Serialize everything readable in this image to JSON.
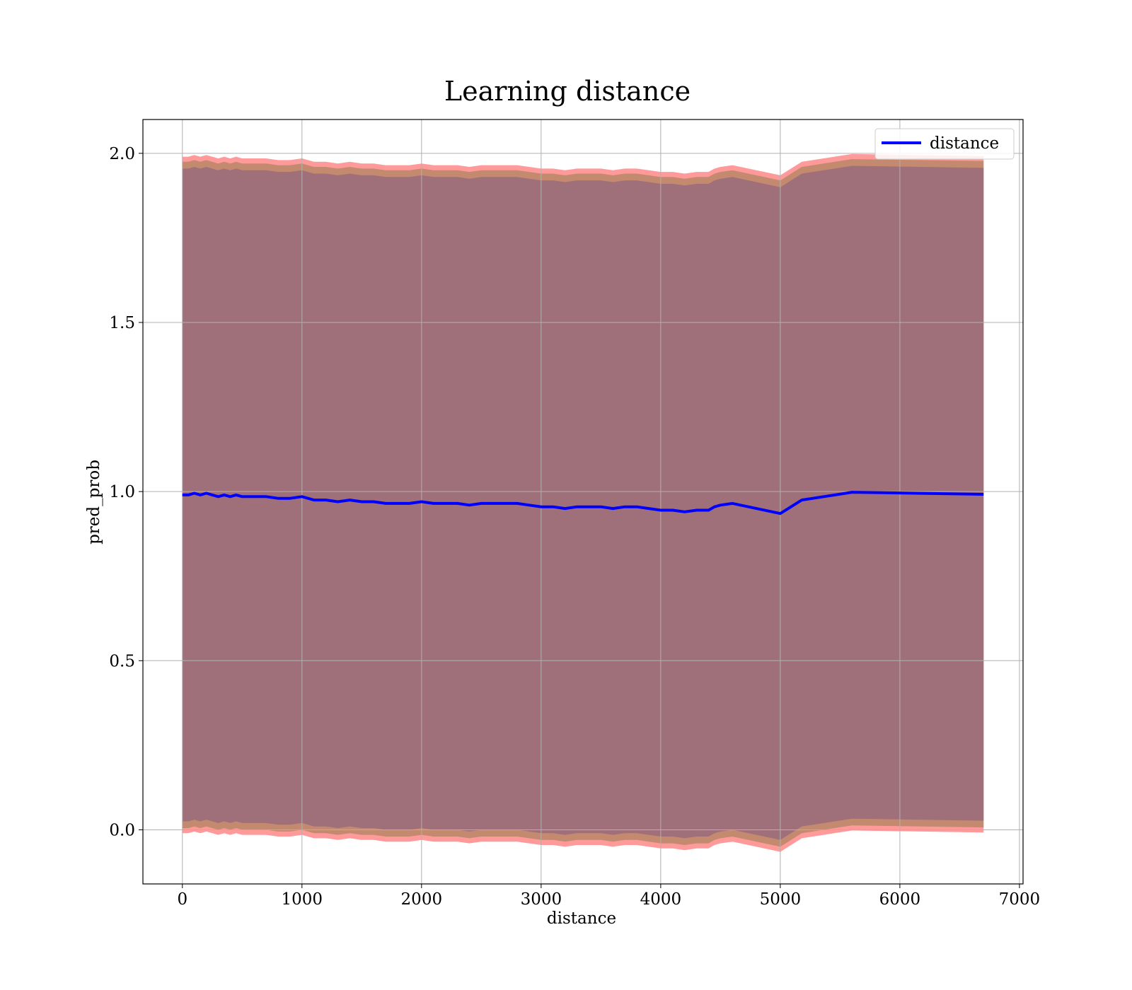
{
  "chart_data": {
    "type": "line",
    "title": "Learning distance",
    "xlabel": "distance",
    "ylabel": "pred_prob",
    "xlim": [
      -330,
      7030
    ],
    "ylim": [
      -0.16,
      2.1
    ],
    "xticks": [
      0,
      1000,
      2000,
      3000,
      4000,
      5000,
      6000,
      7000
    ],
    "yticks": [
      0.0,
      0.5,
      1.0,
      1.5,
      2.0
    ],
    "xtick_labels": [
      "0",
      "1000",
      "2000",
      "3000",
      "4000",
      "5000",
      "6000",
      "7000"
    ],
    "ytick_labels": [
      "0.0",
      "0.5",
      "1.0",
      "1.5",
      "2.0"
    ],
    "grid": true,
    "legend_position": "top-right",
    "colors": {
      "line": "#0000ff",
      "band_outer": "#ff9a9a",
      "band_middle": "#c48a70",
      "band_inner": "#a0707a",
      "grid": "#b0b0b0"
    },
    "series": [
      {
        "name": "distance",
        "x": [
          0,
          50,
          100,
          150,
          200,
          250,
          300,
          350,
          400,
          450,
          500,
          550,
          600,
          700,
          800,
          900,
          1000,
          1100,
          1200,
          1300,
          1400,
          1500,
          1600,
          1700,
          1800,
          1900,
          2000,
          2100,
          2200,
          2300,
          2400,
          2500,
          2600,
          2700,
          2800,
          2900,
          3000,
          3100,
          3200,
          3300,
          3400,
          3500,
          3600,
          3700,
          3800,
          3900,
          4000,
          4100,
          4200,
          4300,
          4400,
          4450,
          4500,
          4600,
          4800,
          5000,
          5180,
          5600,
          6700
        ],
        "y": [
          0.99,
          0.99,
          0.995,
          0.99,
          0.995,
          0.99,
          0.985,
          0.99,
          0.985,
          0.99,
          0.985,
          0.985,
          0.985,
          0.985,
          0.98,
          0.98,
          0.985,
          0.975,
          0.975,
          0.97,
          0.975,
          0.97,
          0.97,
          0.965,
          0.965,
          0.965,
          0.97,
          0.965,
          0.965,
          0.965,
          0.96,
          0.965,
          0.965,
          0.965,
          0.965,
          0.96,
          0.955,
          0.955,
          0.95,
          0.955,
          0.955,
          0.955,
          0.95,
          0.955,
          0.955,
          0.95,
          0.945,
          0.945,
          0.94,
          0.945,
          0.945,
          0.955,
          0.96,
          0.965,
          0.95,
          0.935,
          0.975,
          0.998,
          0.992
        ]
      }
    ],
    "bands": [
      {
        "level": "outer",
        "half_width": 1.0
      },
      {
        "level": "middle",
        "half_width": 0.985
      },
      {
        "level": "inner",
        "half_width": 0.965
      }
    ]
  }
}
